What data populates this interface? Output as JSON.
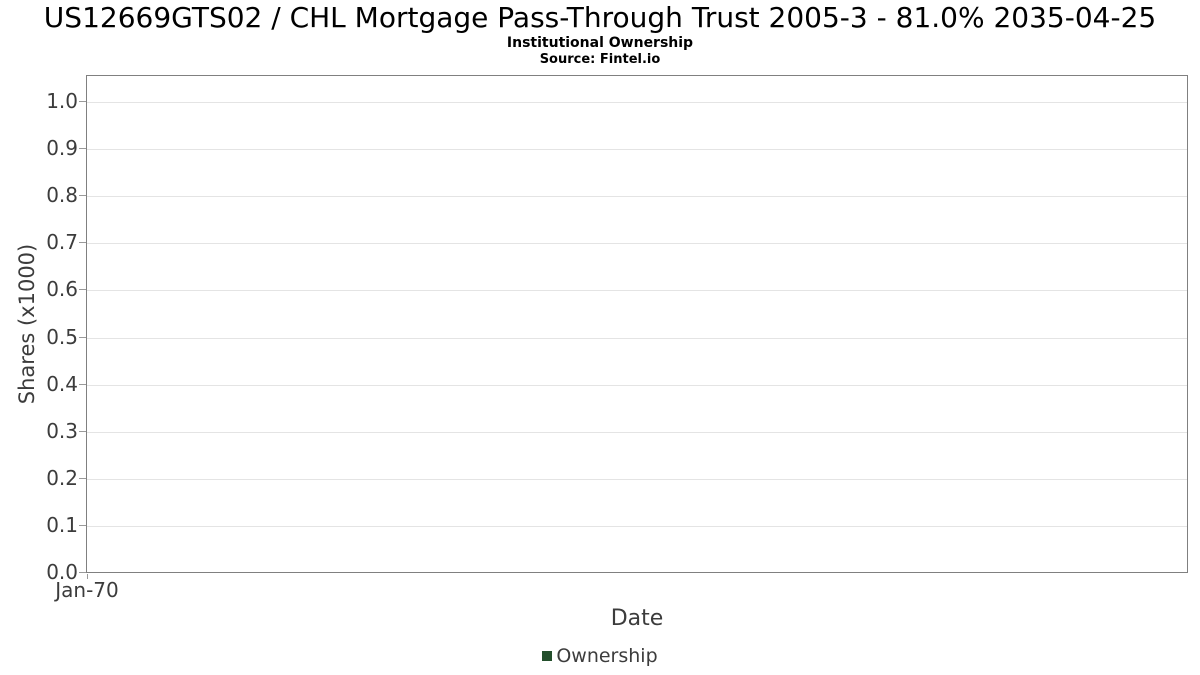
{
  "header": {
    "title": "US12669GTS02 / CHL Mortgage Pass-Through Trust 2005-3 - 81.0% 2035-04-25",
    "subtitle": "Institutional Ownership",
    "source": "Source: Fintel.io"
  },
  "colors": {
    "legend_green": "#234f2c",
    "grid_line": "#e4e4e4",
    "plot_border": "#808080",
    "axis_text": "#3c3c3c",
    "title_text": "#000000"
  },
  "chart_data": {
    "type": "line",
    "title": "US12669GTS02 / CHL Mortgage Pass-Through Trust 2005-3 - 81.0% 2035-04-25",
    "subtitle": "Institutional Ownership",
    "source": "Source: Fintel.io",
    "xlabel": "Date",
    "ylabel": "Shares (x1000)",
    "x_tick_labels": [
      "Jan-70"
    ],
    "y_tick_labels": [
      "0.0",
      "0.1",
      "0.2",
      "0.3",
      "0.4",
      "0.5",
      "0.6",
      "0.7",
      "0.8",
      "0.9",
      "1.0"
    ],
    "y_tick_values": [
      0.0,
      0.1,
      0.2,
      0.3,
      0.4,
      0.5,
      0.6,
      0.7,
      0.8,
      0.9,
      1.0
    ],
    "ylim": [
      0.0,
      1.06
    ],
    "grid": "horizontal",
    "legend_position": "bottom-center",
    "legend": [
      {
        "label": "Ownership",
        "color": "#234f2c"
      }
    ],
    "series": [
      {
        "name": "Ownership",
        "x": [],
        "y": []
      }
    ]
  }
}
